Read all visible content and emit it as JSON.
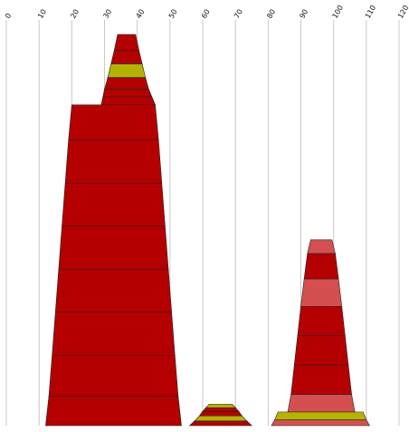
{
  "chart_data": {
    "type": "area",
    "title": "",
    "xlabel": "",
    "ylabel": "",
    "grid": true,
    "legend": "none",
    "x_axis": {
      "position": "top",
      "ticks": [
        0,
        10,
        20,
        30,
        40,
        50,
        60,
        70,
        80,
        90,
        100,
        110,
        120
      ],
      "tick_labels": [
        "0",
        "10",
        "20",
        "30",
        "40",
        "50",
        "60",
        "70",
        "80",
        "90",
        "100",
        "110",
        "120"
      ],
      "range": [
        0,
        120
      ]
    },
    "y_range": [
      0,
      100
    ],
    "colors": {
      "red": "#b40000",
      "olive": "#b4b400",
      "pink": "#d45050",
      "outline": "#222222",
      "grid": "#c8c8c8"
    },
    "shapes": [
      {
        "name": "large",
        "layers": [
          {
            "y0": 0,
            "y1": 7.5,
            "xl0": 12,
            "xr0": 53.5,
            "xl1": 13,
            "xr1": 52.5,
            "color": "red"
          },
          {
            "y0": 7.5,
            "y1": 18,
            "xl0": 13,
            "xr0": 52.5,
            "xl1": 14,
            "xr1": 51.5,
            "color": "red"
          },
          {
            "y0": 18,
            "y1": 29,
            "xl0": 14,
            "xr0": 51.5,
            "xl1": 15,
            "xr1": 50.5,
            "color": "red"
          },
          {
            "y0": 29,
            "y1": 40,
            "xl0": 15,
            "xr0": 50.5,
            "xl1": 16,
            "xr1": 49.5,
            "color": "red"
          },
          {
            "y0": 40,
            "y1": 51,
            "xl0": 16,
            "xr0": 49.5,
            "xl1": 17,
            "xr1": 48.5,
            "color": "red"
          },
          {
            "y0": 51,
            "y1": 62,
            "xl0": 17,
            "xr0": 48.5,
            "xl1": 18,
            "xr1": 47.5,
            "color": "red"
          },
          {
            "y0": 62,
            "y1": 73,
            "xl0": 18,
            "xr0": 47.5,
            "xl1": 19,
            "xr1": 46.5,
            "color": "red"
          },
          {
            "y0": 73,
            "y1": 82,
            "xl0": 19,
            "xr0": 46.5,
            "xl1": 20,
            "xr1": 45.5,
            "color": "red"
          },
          {
            "y0": 82,
            "y1": 84,
            "xl0": 29,
            "xr0": 45.5,
            "xl1": 29.5,
            "xr1": 44.5,
            "color": "red"
          },
          {
            "y0": 84,
            "y1": 86,
            "xl0": 29.5,
            "xr0": 44.5,
            "xl1": 30,
            "xr1": 43.5,
            "color": "red"
          },
          {
            "y0": 86,
            "y1": 89,
            "xl0": 30,
            "xr0": 43.5,
            "xl1": 31,
            "xr1": 42.5,
            "color": "red"
          },
          {
            "y0": 89,
            "y1": 92.5,
            "xl0": 31,
            "xr0": 42.5,
            "xl1": 32,
            "xr1": 41.5,
            "color": "olive"
          },
          {
            "y0": 92.5,
            "y1": 96,
            "xl0": 32,
            "xr0": 41.5,
            "xl1": 33,
            "xr1": 40.5,
            "color": "red"
          },
          {
            "y0": 96,
            "y1": 100,
            "xl0": 33,
            "xr0": 40.5,
            "xl1": 34,
            "xr1": 39.5,
            "color": "red"
          }
        ]
      },
      {
        "name": "small",
        "layers": [
          {
            "y0": 0,
            "y1": 1.2,
            "xl0": 56,
            "xr0": 75,
            "xl1": 57.5,
            "xr1": 73.5,
            "color": "red"
          },
          {
            "y0": 1.2,
            "y1": 2.5,
            "xl0": 57.5,
            "xr0": 73.5,
            "xl1": 59,
            "xr1": 72,
            "color": "olive"
          },
          {
            "y0": 2.5,
            "y1": 3.7,
            "xl0": 59,
            "xr0": 72,
            "xl1": 60,
            "xr1": 71,
            "color": "red"
          },
          {
            "y0": 3.7,
            "y1": 4.6,
            "xl0": 60,
            "xr0": 71,
            "xl1": 61,
            "xr1": 70,
            "color": "red"
          },
          {
            "y0": 4.6,
            "y1": 5.5,
            "xl0": 61,
            "xr0": 70,
            "xl1": 62,
            "xr1": 69,
            "color": "olive"
          }
        ]
      },
      {
        "name": "medium",
        "layers": [
          {
            "y0": 0,
            "y1": 1.5,
            "xl0": 81,
            "xr0": 111,
            "xl1": 82,
            "xr1": 110,
            "color": "pink"
          },
          {
            "y0": 1.5,
            "y1": 3.5,
            "xl0": 82,
            "xr0": 110,
            "xl1": 83,
            "xr1": 109,
            "color": "olive"
          },
          {
            "y0": 3.5,
            "y1": 8,
            "xl0": 86,
            "xr0": 106.5,
            "xl1": 87,
            "xr1": 105.5,
            "color": "pink"
          },
          {
            "y0": 8,
            "y1": 15.5,
            "xl0": 87,
            "xr0": 105.5,
            "xl1": 88,
            "xr1": 104.5,
            "color": "red"
          },
          {
            "y0": 15.5,
            "y1": 23,
            "xl0": 88,
            "xr0": 104.5,
            "xl1": 89,
            "xr1": 103.5,
            "color": "red"
          },
          {
            "y0": 23,
            "y1": 30.5,
            "xl0": 89,
            "xr0": 103.5,
            "xl1": 90,
            "xr1": 102.5,
            "color": "red"
          },
          {
            "y0": 30.5,
            "y1": 37.5,
            "xl0": 90,
            "xr0": 102.5,
            "xl1": 91,
            "xr1": 101.5,
            "color": "pink"
          },
          {
            "y0": 37.5,
            "y1": 44,
            "xl0": 91,
            "xr0": 101.5,
            "xl1": 92,
            "xr1": 100.5,
            "color": "red"
          },
          {
            "y0": 44,
            "y1": 47.5,
            "xl0": 92,
            "xr0": 100.5,
            "xl1": 93,
            "xr1": 99.5,
            "color": "pink"
          }
        ]
      }
    ]
  }
}
